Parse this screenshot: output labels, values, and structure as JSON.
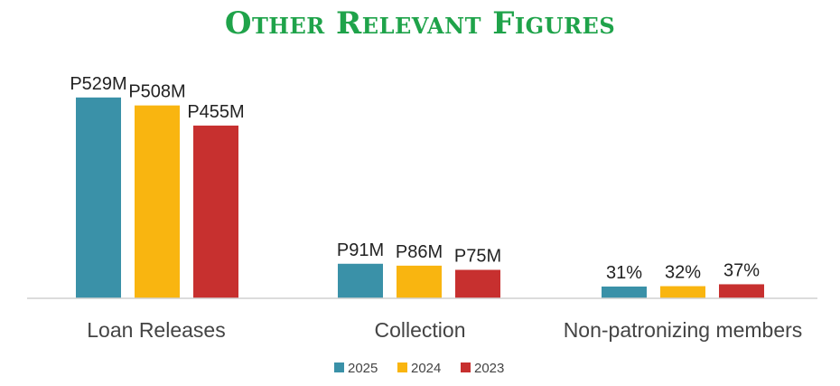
{
  "title": "Other Relevant Figures",
  "colors": {
    "title": "#1fa34a",
    "s2025": "#3a91a8",
    "s2024": "#f9b510",
    "s2023": "#c7302f",
    "axis": "#d0d0d0"
  },
  "chart_data": {
    "type": "bar",
    "title": "Other Relevant Figures",
    "categories": [
      "Loan Releases",
      "Collection",
      "Non-patronizing members"
    ],
    "series": [
      {
        "name": "2025",
        "values": [
          529,
          91,
          31
        ],
        "labels": [
          "P529M",
          "P91M",
          "31%"
        ]
      },
      {
        "name": "2024",
        "values": [
          508,
          86,
          32
        ],
        "labels": [
          "P508M",
          "P86M",
          "32%"
        ]
      },
      {
        "name": "2023",
        "values": [
          455,
          75,
          37
        ],
        "labels": [
          "P455M",
          "P75M",
          "37%"
        ]
      }
    ],
    "legend_position": "bottom",
    "grid": false,
    "xlabel": "",
    "ylabel": ""
  }
}
